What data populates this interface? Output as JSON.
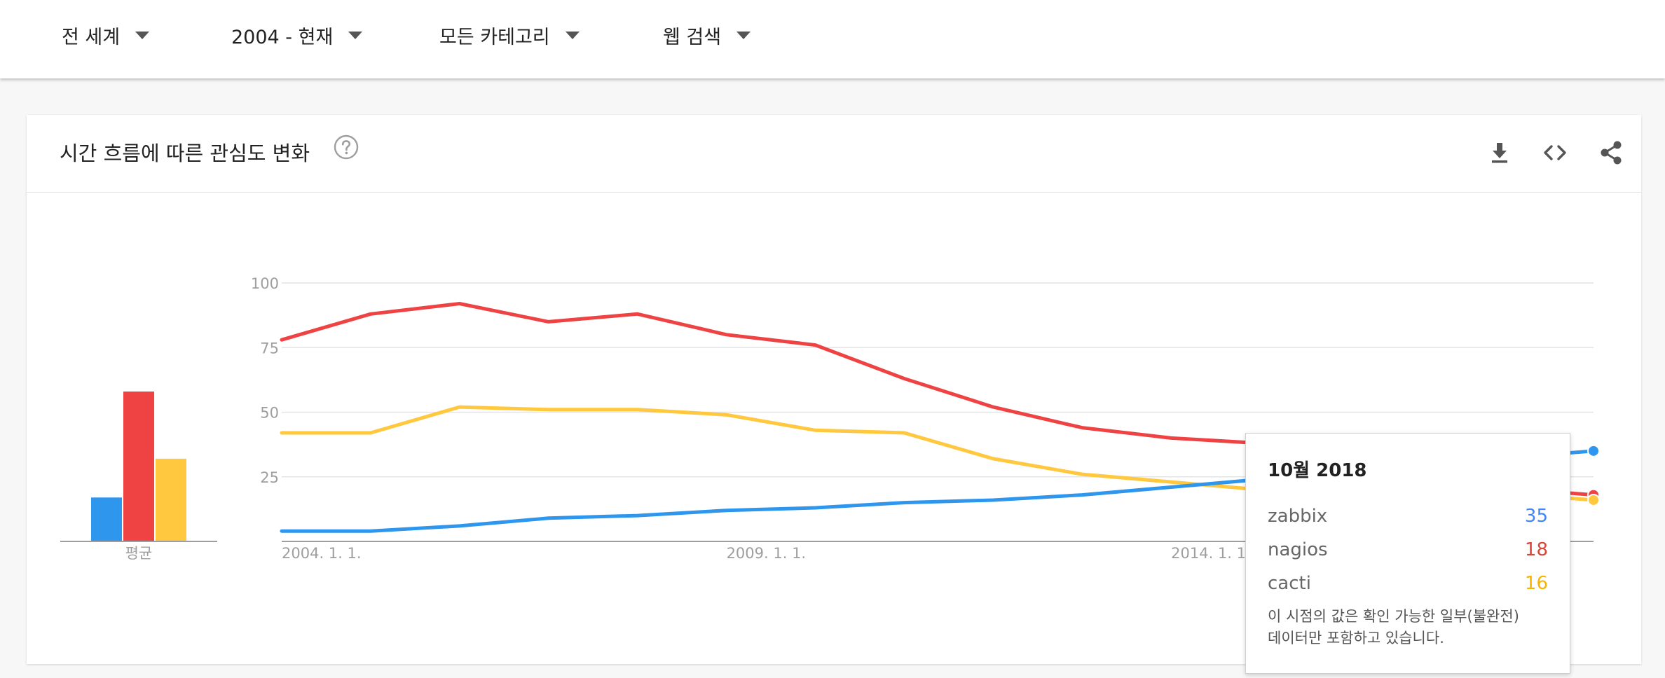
{
  "filters": [
    {
      "label": "전 세계"
    },
    {
      "label": "2004 - 현재"
    },
    {
      "label": "모든 카테고리"
    },
    {
      "label": "웹 검색"
    }
  ],
  "card": {
    "title": "시간 흐름에 따른 관심도 변화",
    "icons": [
      "help-icon",
      "download-icon",
      "embed-icon",
      "share-icon"
    ]
  },
  "tooltip": {
    "date": "10월 2018",
    "rows": [
      {
        "name": "zabbix",
        "value": "35",
        "color": "#4285f4"
      },
      {
        "name": "nagios",
        "value": "18",
        "color": "#db4437"
      },
      {
        "name": "cacti",
        "value": "16",
        "color": "#f4b400"
      }
    ],
    "note_line1": "이 시점의 값은 확인 가능한 일부(불완전)",
    "note_line2": "데이터만 포함하고 있습니다."
  },
  "colors": {
    "zabbix": "#2f96ee",
    "nagios": "#ef4343",
    "cacti": "#ffc83e"
  },
  "chart_data": {
    "type": "line",
    "y_ticks": [
      "100",
      "75",
      "50",
      "25"
    ],
    "ylim": [
      0,
      100
    ],
    "x_labels": [
      "2004. 1. 1.",
      "2009. 1. 1.",
      "2014. 1. 1."
    ],
    "x_label_years": [
      2004,
      2009,
      2014
    ],
    "xlim": [
      "2004-01",
      "2018-10"
    ],
    "grid": true,
    "averages": {
      "label": "평균",
      "values": [
        17,
        58,
        32
      ],
      "series": [
        "zabbix",
        "nagios",
        "cacti"
      ]
    },
    "series": [
      {
        "name": "nagios",
        "x_start": "2004-01",
        "interval": "year",
        "values": [
          78,
          88,
          92,
          85,
          88,
          80,
          76,
          63,
          52,
          44,
          40,
          38,
          30,
          24,
          20
        ]
      },
      {
        "name": "cacti",
        "x_start": "2004-01",
        "interval": "year",
        "values": [
          42,
          42,
          52,
          51,
          51,
          49,
          43,
          42,
          32,
          26,
          23,
          20,
          20,
          20,
          18
        ]
      },
      {
        "name": "zabbix",
        "x_start": "2004-01",
        "interval": "year",
        "values": [
          4,
          4,
          6,
          9,
          10,
          12,
          13,
          15,
          16,
          18,
          21,
          24,
          27,
          31,
          33
        ]
      }
    ],
    "endpoints": {
      "date": "2018-10",
      "zabbix": 35,
      "nagios": 18,
      "cacti": 16
    }
  }
}
